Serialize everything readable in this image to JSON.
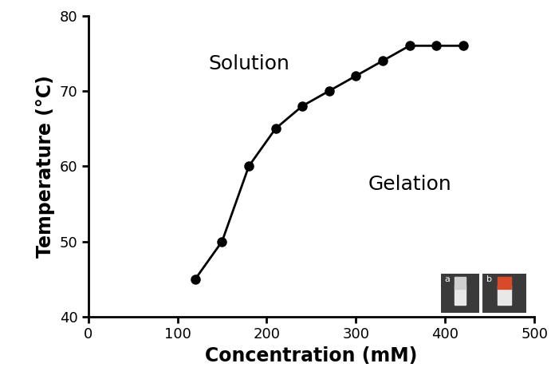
{
  "chart_data": {
    "type": "line",
    "x_label": "Concentration (mM)",
    "y_label": "Temperature (°C)",
    "x": [
      120,
      150,
      180,
      210,
      240,
      270,
      300,
      330,
      360,
      390,
      420
    ],
    "values": [
      45,
      50,
      60,
      65,
      68,
      70,
      72,
      74,
      76,
      76,
      76
    ],
    "color": "#000000",
    "marker": "o",
    "line_style": "solid",
    "xlim": [
      0,
      500
    ],
    "xticks": [
      0,
      100,
      200,
      300,
      400,
      500
    ],
    "ylim": [
      40,
      80
    ],
    "yticks": [
      40,
      50,
      60,
      70,
      80
    ],
    "grid": false,
    "annotations": [
      "Solution",
      "Gelation"
    ],
    "insets": [
      "a",
      "b"
    ]
  }
}
